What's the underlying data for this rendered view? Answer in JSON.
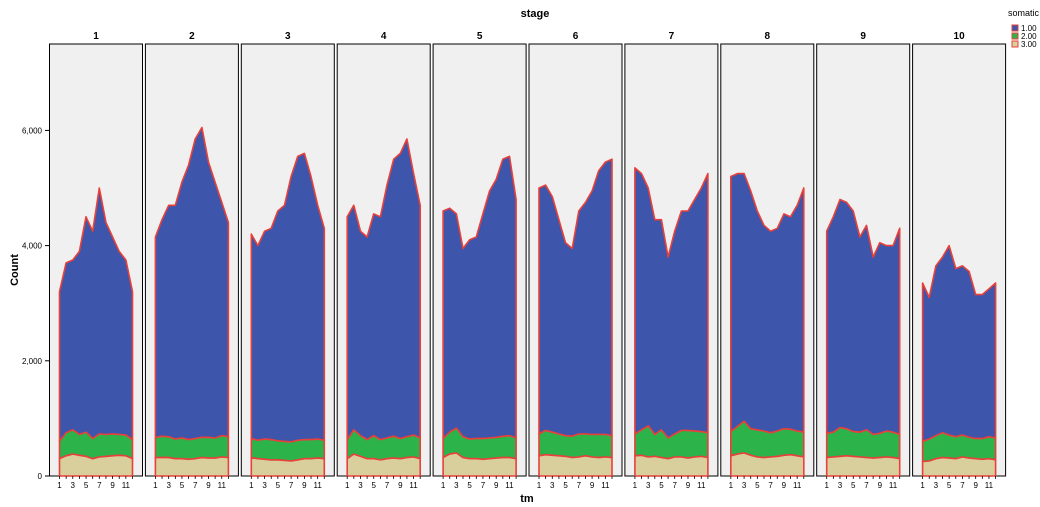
{
  "chart_data": {
    "type": "area",
    "stacked": true,
    "title": "stage",
    "xlabel": "tm",
    "ylabel": "Count",
    "ylim": [
      0,
      7500
    ],
    "y_ticks": [
      0,
      2000,
      4000,
      6000
    ],
    "y_tick_labels": [
      "0",
      "2,000",
      "4,000",
      "6,000"
    ],
    "x": [
      1,
      2,
      3,
      4,
      5,
      6,
      7,
      8,
      9,
      10,
      11,
      12
    ],
    "x_tick_labels": [
      "1",
      "3",
      "5",
      "7",
      "9",
      "11"
    ],
    "legend": {
      "title": "somatic",
      "position": "top-right",
      "entries": [
        "1.00",
        "2.00",
        "3.00"
      ]
    },
    "colors": {
      "1.00": "#3d55aa",
      "2.00": "#2cb34a",
      "3.00": "#d8cf9c",
      "outline": "#e8403a",
      "panel_bg": "#f0f0f0"
    },
    "panels": [
      {
        "label": "1",
        "totals": [
          3200,
          3700,
          3750,
          3900,
          4500,
          4250,
          5000,
          4400,
          4150,
          3900,
          3750,
          3200
        ],
        "s3": [
          300,
          350,
          380,
          360,
          340,
          300,
          330,
          340,
          350,
          360,
          350,
          300
        ],
        "s2": [
          300,
          400,
          420,
          360,
          420,
          350,
          400,
          380,
          380,
          360,
          360,
          330
        ]
      },
      {
        "label": "2",
        "totals": [
          4150,
          4450,
          4700,
          4700,
          5100,
          5400,
          5850,
          6050,
          5450,
          5100,
          4750,
          4400
        ],
        "s3": [
          320,
          320,
          320,
          300,
          300,
          290,
          300,
          320,
          310,
          310,
          330,
          320
        ],
        "s2": [
          350,
          370,
          360,
          340,
          360,
          340,
          350,
          350,
          360,
          350,
          370,
          360
        ]
      },
      {
        "label": "3",
        "totals": [
          4200,
          4000,
          4250,
          4300,
          4600,
          4700,
          5200,
          5550,
          5600,
          5200,
          4700,
          4300
        ],
        "s3": [
          320,
          300,
          290,
          280,
          280,
          270,
          260,
          280,
          300,
          300,
          310,
          300
        ],
        "s2": [
          330,
          320,
          350,
          350,
          330,
          330,
          330,
          340,
          330,
          330,
          330,
          320
        ]
      },
      {
        "label": "4",
        "totals": [
          4500,
          4700,
          4250,
          4150,
          4550,
          4500,
          5050,
          5500,
          5600,
          5850,
          5250,
          4700
        ],
        "s3": [
          300,
          380,
          340,
          300,
          300,
          280,
          300,
          310,
          300,
          320,
          330,
          300
        ],
        "s2": [
          330,
          420,
          360,
          330,
          400,
          350,
          360,
          380,
          350,
          360,
          380,
          360
        ]
      },
      {
        "label": "5",
        "totals": [
          4600,
          4650,
          4550,
          3950,
          4100,
          4150,
          4550,
          4950,
          5150,
          5500,
          5550,
          4800
        ],
        "s3": [
          320,
          380,
          400,
          320,
          300,
          300,
          290,
          300,
          310,
          320,
          320,
          300
        ],
        "s2": [
          330,
          380,
          430,
          360,
          340,
          350,
          360,
          360,
          360,
          370,
          380,
          360
        ]
      },
      {
        "label": "6",
        "totals": [
          5000,
          5050,
          4850,
          4450,
          4050,
          3950,
          4600,
          4750,
          4950,
          5300,
          5450,
          5500
        ],
        "s3": [
          350,
          370,
          360,
          350,
          340,
          320,
          330,
          350,
          330,
          320,
          330,
          320
        ],
        "s2": [
          380,
          420,
          400,
          380,
          360,
          370,
          400,
          380,
          390,
          400,
          390,
          380
        ]
      },
      {
        "label": "7",
        "totals": [
          5350,
          5250,
          5000,
          4450,
          4450,
          3800,
          4250,
          4600,
          4600,
          4800,
          5000,
          5250
        ],
        "s3": [
          350,
          360,
          330,
          340,
          320,
          300,
          330,
          330,
          310,
          330,
          340,
          320
        ],
        "s2": [
          380,
          440,
          540,
          380,
          480,
          360,
          400,
          460,
          480,
          450,
          430,
          430
        ]
      },
      {
        "label": "8",
        "totals": [
          5200,
          5250,
          5250,
          4950,
          4600,
          4350,
          4250,
          4300,
          4550,
          4500,
          4700,
          5000
        ],
        "s3": [
          350,
          380,
          400,
          360,
          330,
          320,
          330,
          340,
          360,
          370,
          350,
          330
        ],
        "s2": [
          420,
          480,
          550,
          460,
          470,
          460,
          420,
          440,
          460,
          440,
          430,
          430
        ]
      },
      {
        "label": "9",
        "totals": [
          4250,
          4500,
          4800,
          4750,
          4600,
          4150,
          4350,
          3800,
          4050,
          4000,
          4000,
          4300
        ],
        "s3": [
          320,
          330,
          340,
          350,
          340,
          330,
          320,
          310,
          320,
          330,
          320,
          300
        ],
        "s2": [
          420,
          430,
          500,
          470,
          430,
          430,
          480,
          410,
          420,
          450,
          440,
          420
        ]
      },
      {
        "label": "10",
        "totals": [
          3350,
          3100,
          3650,
          3800,
          4000,
          3600,
          3650,
          3550,
          3150,
          3150,
          3250,
          3350
        ],
        "s3": [
          250,
          260,
          300,
          320,
          310,
          300,
          330,
          310,
          300,
          290,
          300,
          280
        ],
        "s2": [
          350,
          380,
          400,
          430,
          400,
          380,
          380,
          360,
          350,
          360,
          380,
          380
        ]
      }
    ]
  }
}
